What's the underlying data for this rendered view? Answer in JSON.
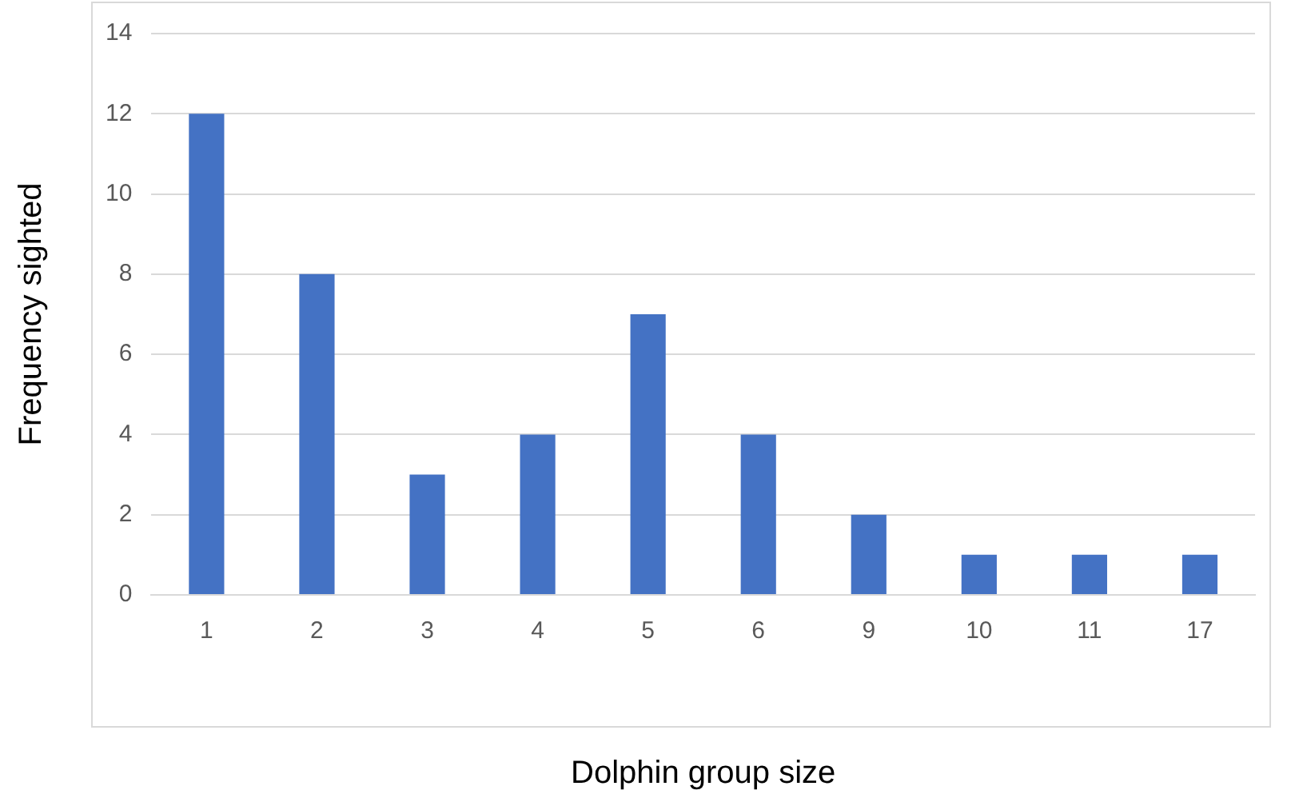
{
  "chart_data": {
    "type": "bar",
    "xlabel": "Dolphin group size",
    "ylabel": "Frequency sighted",
    "categories": [
      "1",
      "2",
      "3",
      "4",
      "5",
      "6",
      "9",
      "10",
      "11",
      "17"
    ],
    "values": [
      12,
      8,
      3,
      4,
      7,
      4,
      2,
      1,
      1,
      1
    ],
    "color": "#4472c4",
    "ylim": [
      0,
      14
    ],
    "yticks": [
      0,
      2,
      4,
      6,
      8,
      10,
      12,
      14
    ],
    "grid": "y",
    "legend": false
  }
}
